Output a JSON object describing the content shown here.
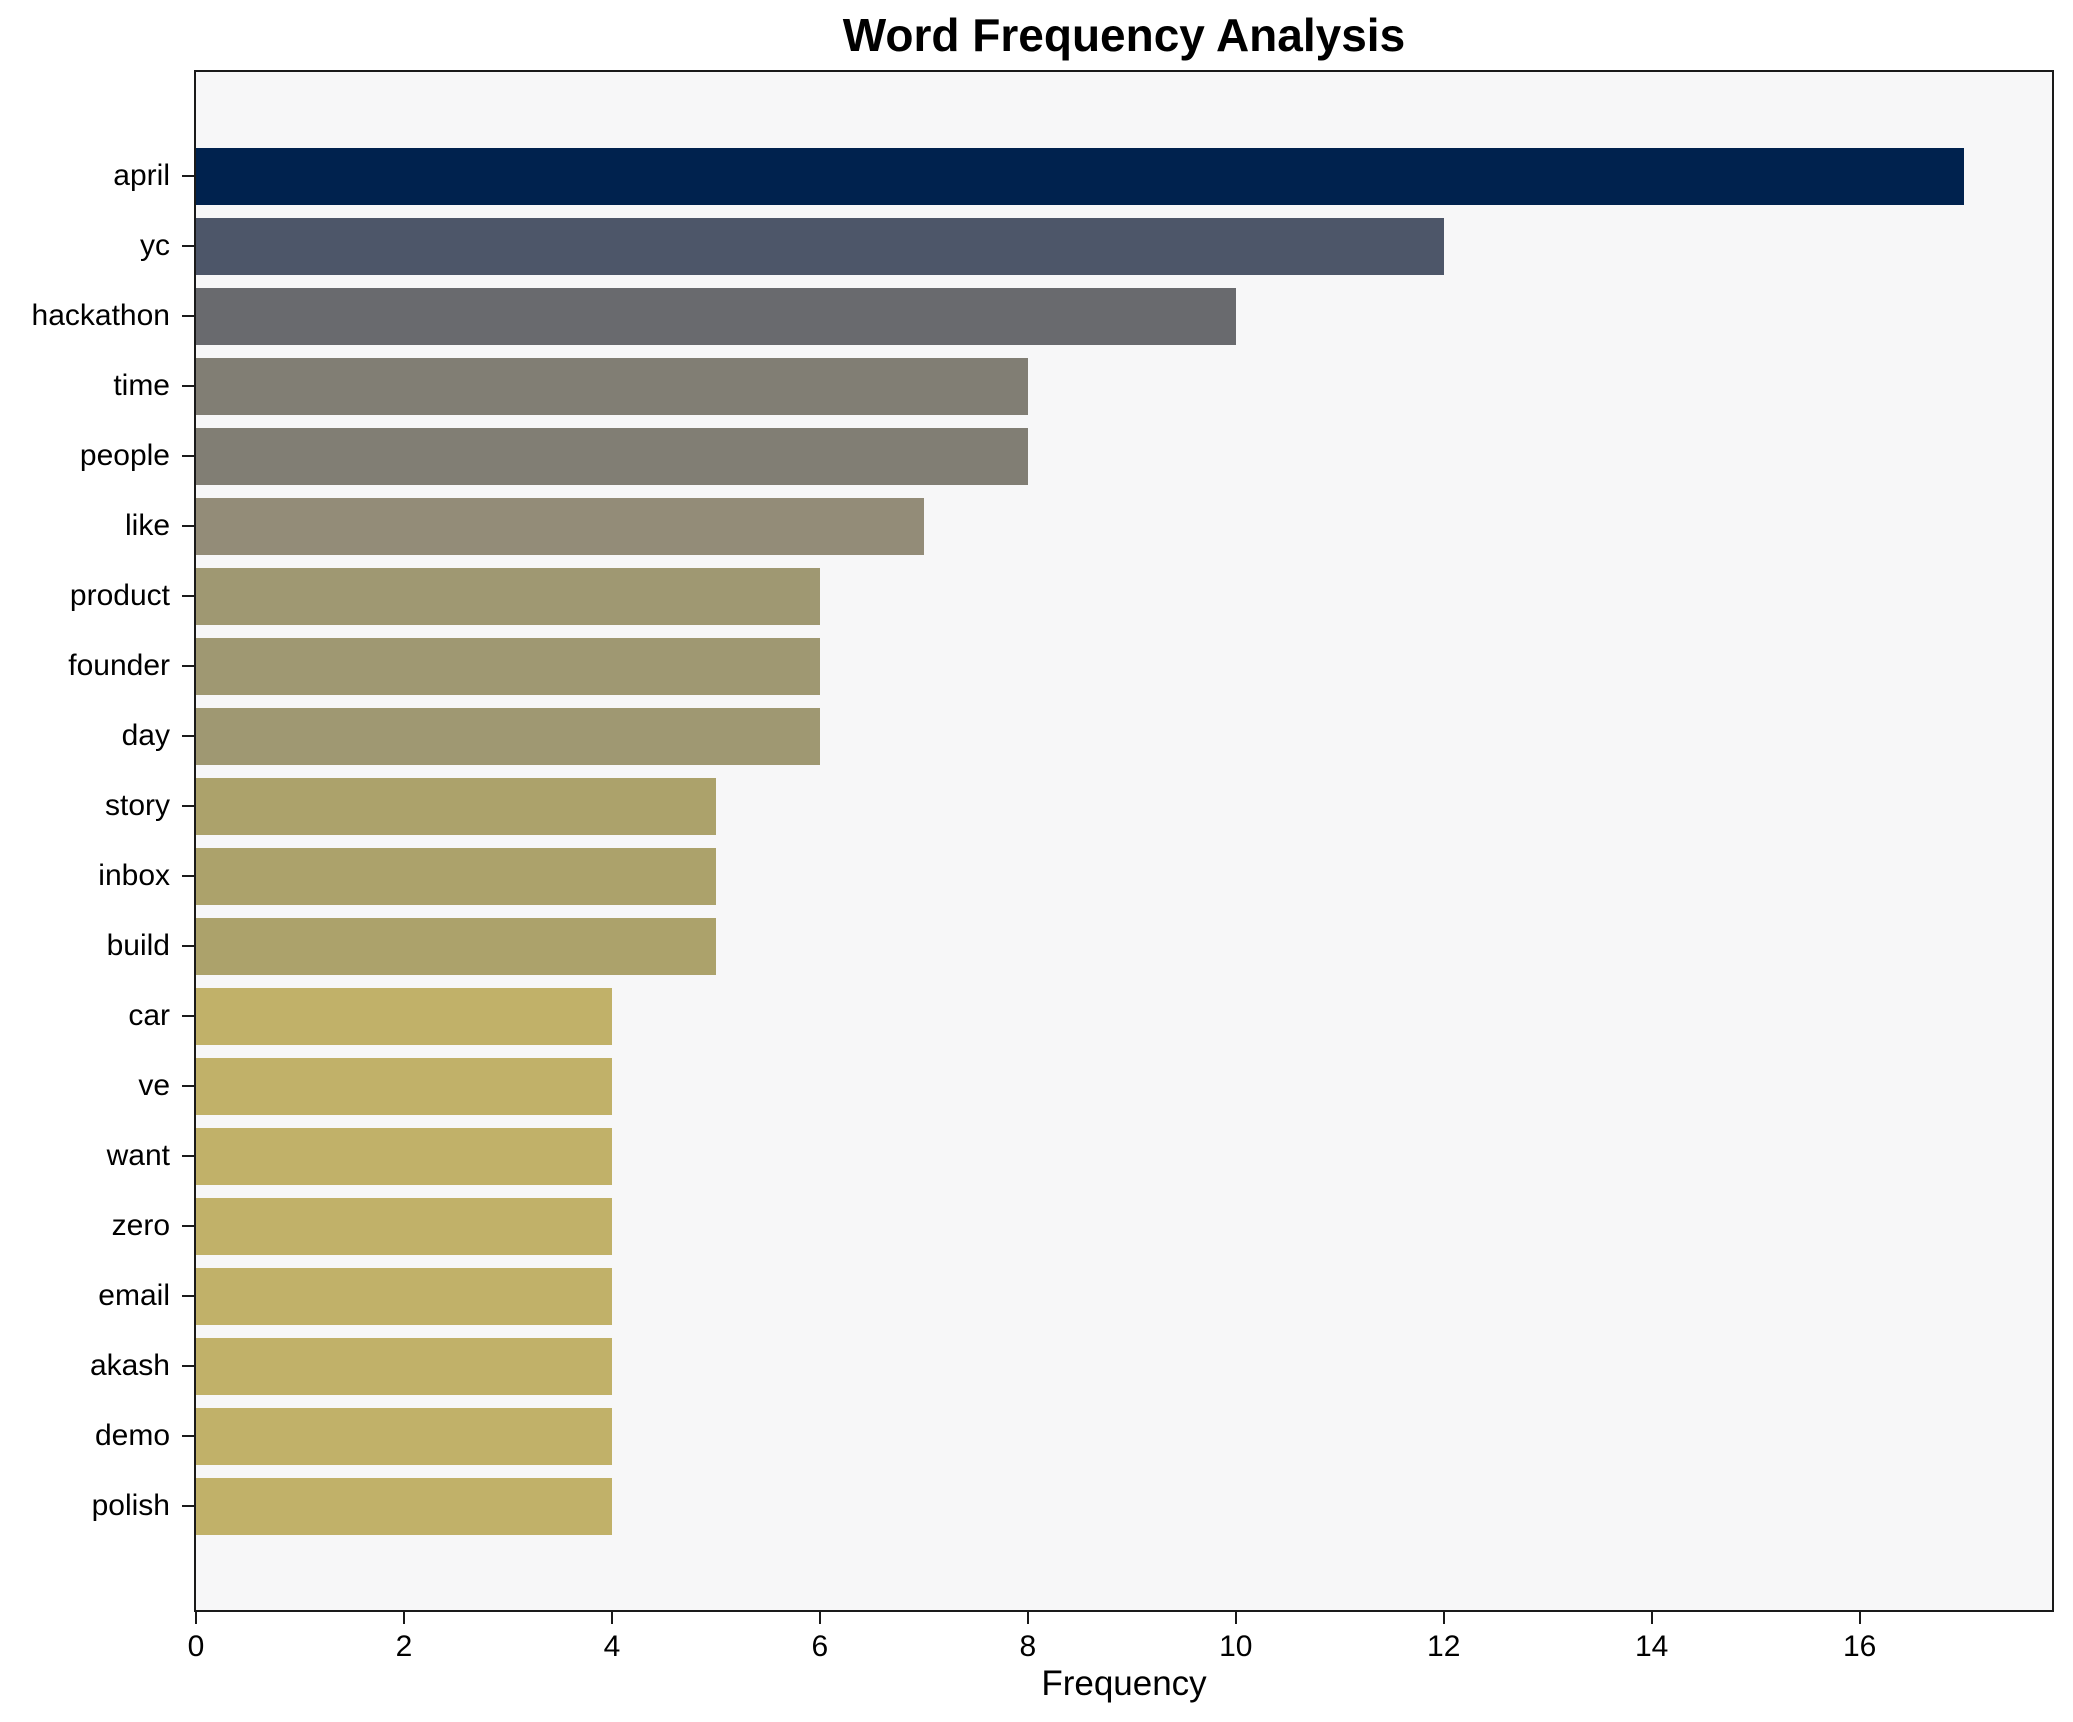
{
  "title": "Word Frequency Analysis",
  "chart_data": {
    "type": "bar",
    "orientation": "horizontal",
    "title": "Word Frequency Analysis",
    "xlabel": "Frequency",
    "ylabel": "",
    "categories": [
      "april",
      "yc",
      "hackathon",
      "time",
      "people",
      "like",
      "product",
      "founder",
      "day",
      "story",
      "inbox",
      "build",
      "car",
      "ve",
      "want",
      "zero",
      "email",
      "akash",
      "demo",
      "polish"
    ],
    "values": [
      17,
      12,
      10,
      8,
      8,
      7,
      6,
      6,
      6,
      5,
      5,
      5,
      4,
      4,
      4,
      4,
      4,
      4,
      4,
      4
    ],
    "bar_colors": [
      "#00224e",
      "#4d5669",
      "#696a6e",
      "#817e74",
      "#817e74",
      "#938c78",
      "#9f9872",
      "#9f9872",
      "#9f9872",
      "#aca26b",
      "#aca26b",
      "#aca26b",
      "#c1b169",
      "#c1b169",
      "#c1b169",
      "#c1b169",
      "#c1b169",
      "#c1b169",
      "#c1b169",
      "#c1b169"
    ],
    "xlim": [
      0,
      17.85
    ],
    "x_ticks": [
      0,
      2,
      4,
      6,
      8,
      10,
      12,
      14,
      16
    ],
    "x_tick_labels": [
      "0",
      "2",
      "4",
      "6",
      "8",
      "10",
      "12",
      "14",
      "16"
    ],
    "grid": false,
    "legend": "none",
    "plot_background": "#f7f7f8",
    "figure_background": "#ffffff",
    "spine_color": "#1a1a1a",
    "text_color": "#000000"
  }
}
